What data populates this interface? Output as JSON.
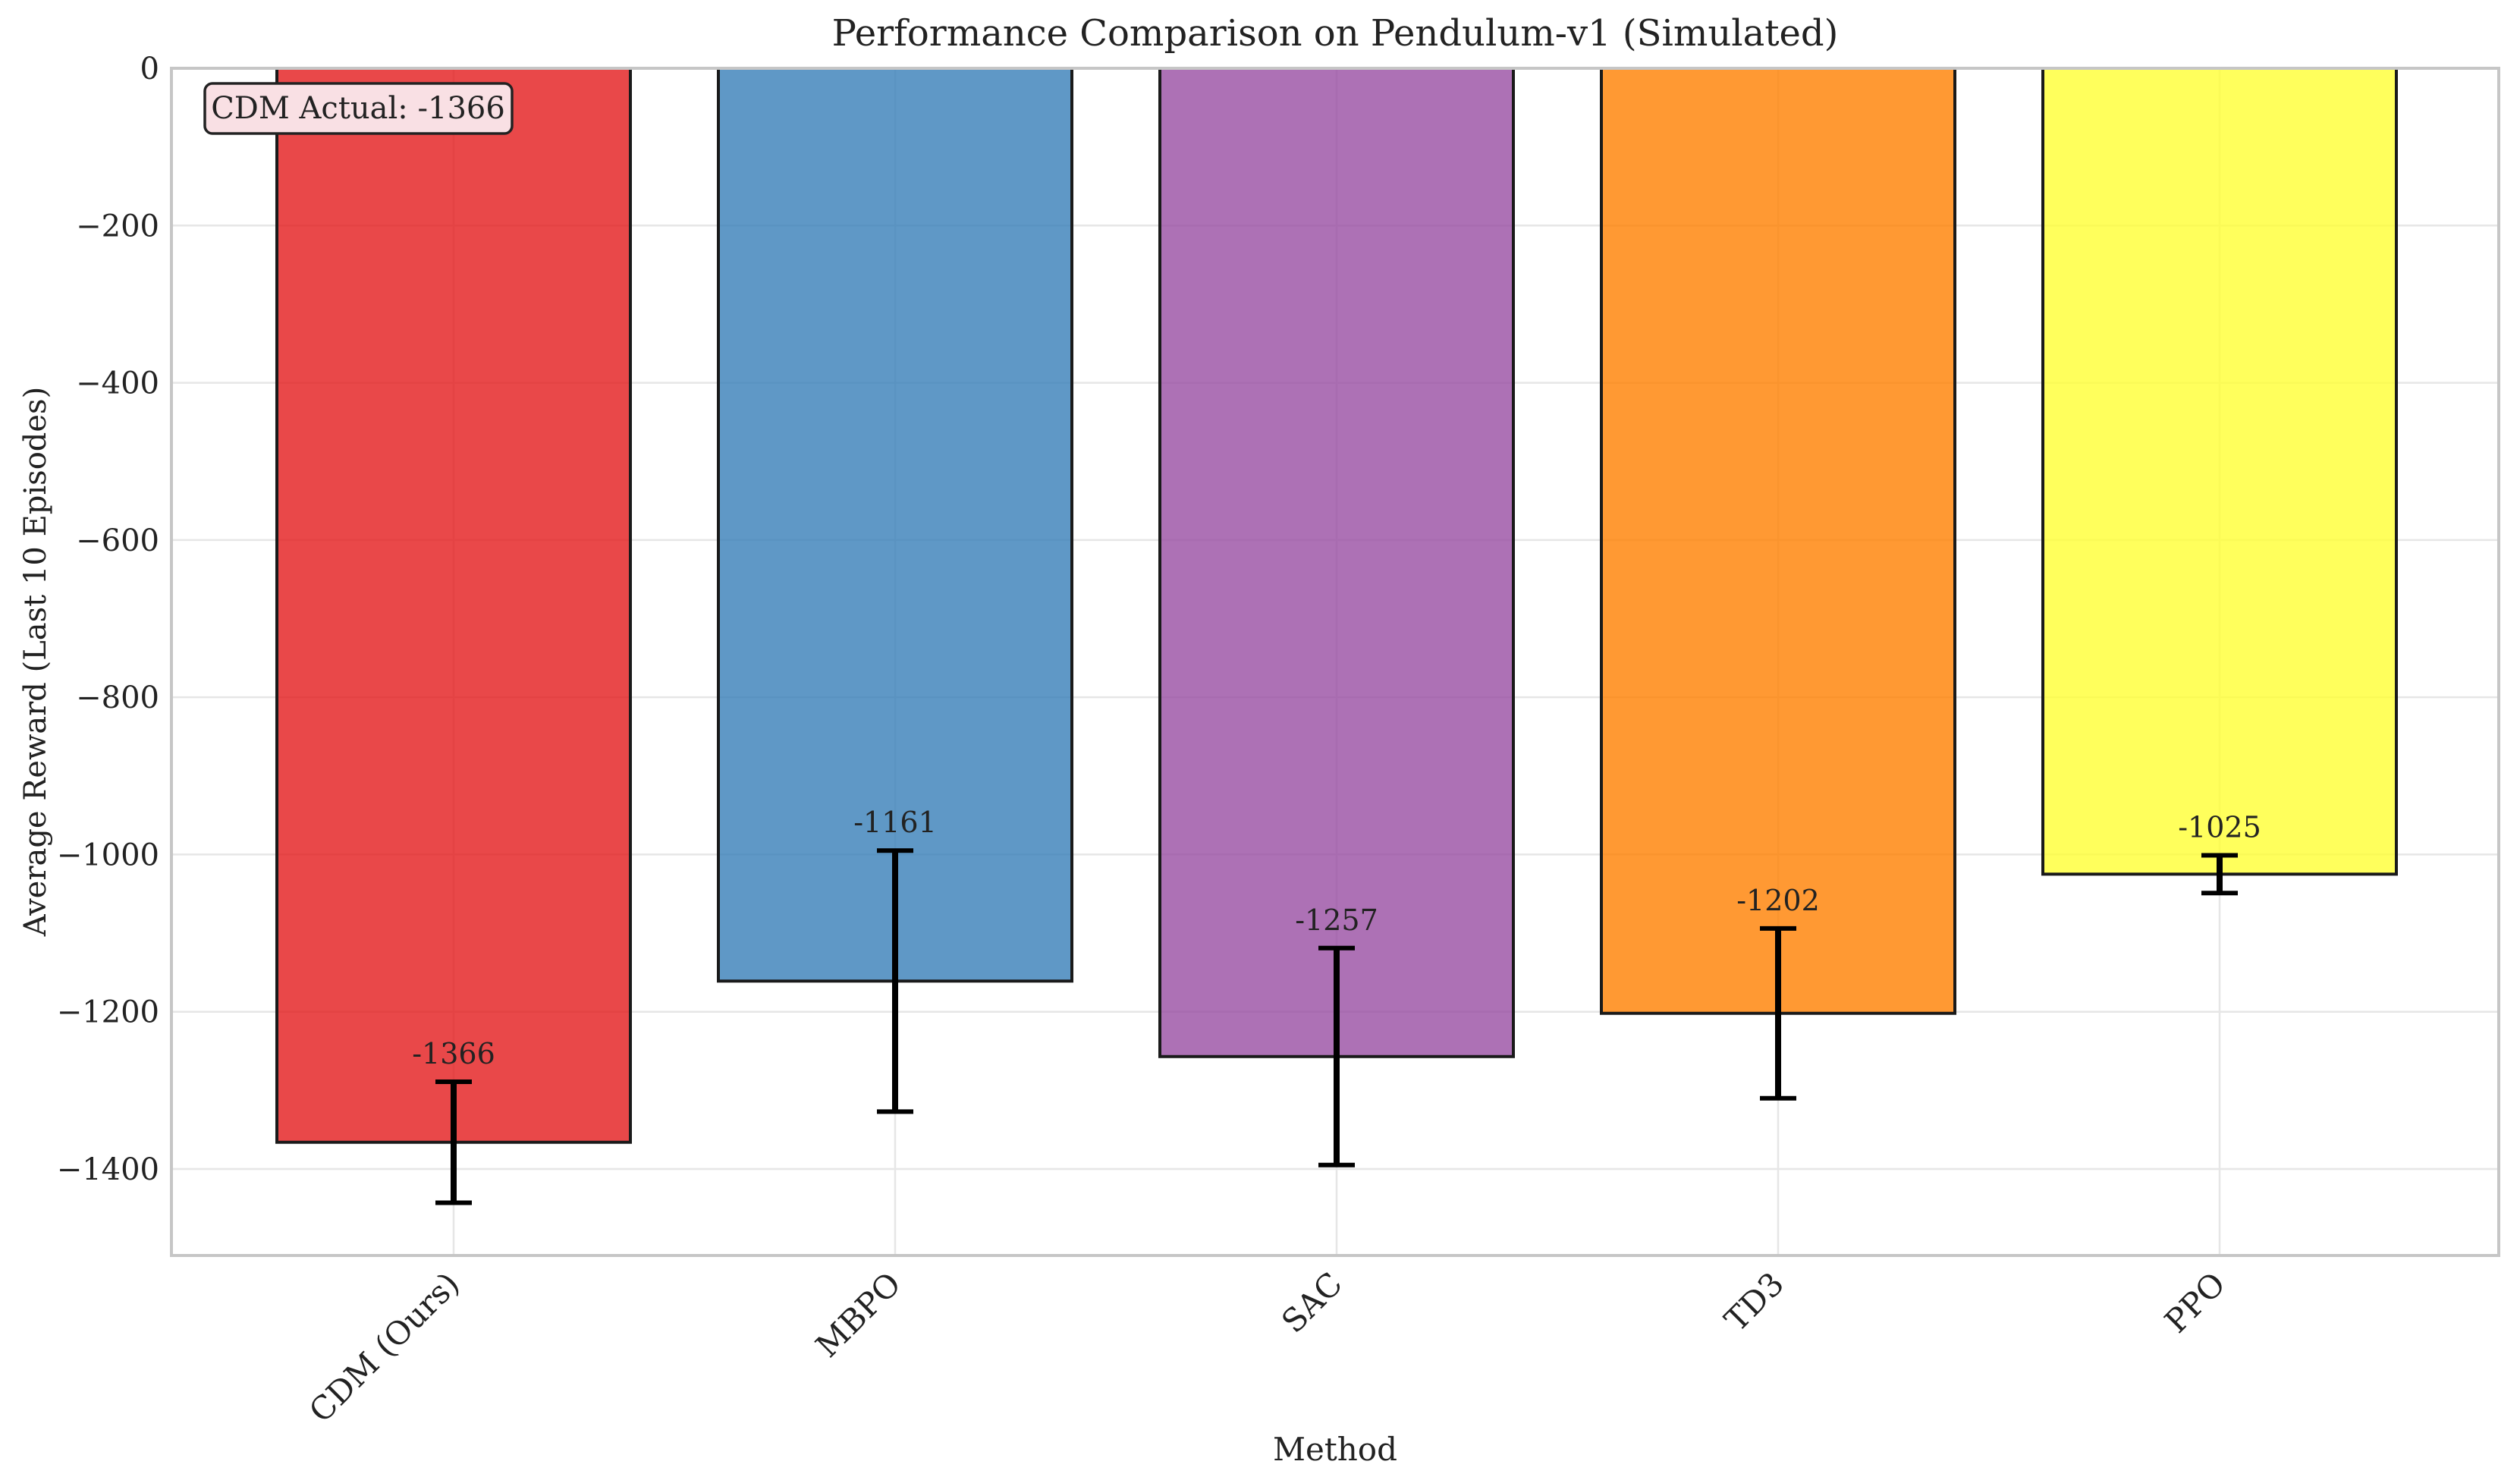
{
  "chart_data": {
    "type": "bar",
    "title": "Performance Comparison on Pendulum-v1 (Simulated)",
    "xlabel": "Method",
    "ylabel": "Average Reward (Last 10 Episodes)",
    "categories": [
      "CDM (Ours)",
      "MBPO",
      "SAC",
      "TD3",
      "PPO"
    ],
    "values": [
      -1366,
      -1161,
      -1257,
      -1202,
      -1025
    ],
    "errors": [
      77,
      166,
      138,
      108,
      24
    ],
    "value_labels": [
      "-1366",
      "-1161",
      "-1257",
      "-1202",
      "-1025"
    ],
    "colors": [
      "#e41a1c",
      "#377eb8",
      "#984ea3",
      "#ff7f00",
      "#ffff33"
    ],
    "ylim": [
      -1510,
      0
    ],
    "yticks": [
      0,
      -200,
      -400,
      -600,
      -800,
      -1000,
      -1200,
      -1400
    ],
    "ytick_labels": [
      "0",
      "−200",
      "−400",
      "−600",
      "−800",
      "−1000",
      "−1200",
      "−1400"
    ],
    "grid": true,
    "annotation": "CDM Actual: -1366",
    "annotation_location": "top-left"
  }
}
